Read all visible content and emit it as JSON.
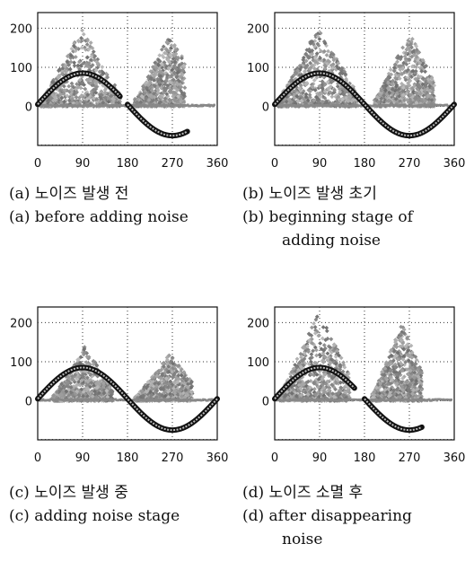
{
  "chart_data": [
    {
      "type": "scatter",
      "panel": "a",
      "caption_ko": "(a) 노이즈 발생 전",
      "caption_en": "(a) before adding noise",
      "caption_en_cont": "",
      "xlim": [
        0,
        360
      ],
      "ylim": [
        -100,
        240
      ],
      "xticks": [
        0,
        90,
        180,
        270,
        360
      ],
      "yticks": [
        0,
        100,
        200
      ],
      "grid": true,
      "series": [
        {
          "kind": "sine",
          "x_range": [
            0,
            165
          ],
          "segments": [
            [
              0,
              165
            ],
            [
              180,
              300
            ]
          ]
        },
        {
          "kind": "noise-clusters",
          "clusters": [
            {
              "x_range": [
                5,
                165
              ],
              "y_max": 200,
              "peak_x": 90
            },
            {
              "x_range": [
                195,
                295
              ],
              "y_max": 190,
              "peak_x": 265
            }
          ]
        }
      ]
    },
    {
      "type": "scatter",
      "panel": "b",
      "caption_ko": "(b) 노이즈 발생 초기",
      "caption_en": "(b) beginning stage of",
      "caption_en_cont": "adding noise",
      "xlim": [
        0,
        360
      ],
      "ylim": [
        -100,
        240
      ],
      "xticks": [
        0,
        90,
        180,
        270,
        360
      ],
      "yticks": [
        0,
        100,
        200
      ],
      "grid": true,
      "series": [
        {
          "kind": "sine",
          "segments": [
            [
              0,
              360
            ]
          ]
        },
        {
          "kind": "noise-clusters",
          "clusters": [
            {
              "x_range": [
                5,
                165
              ],
              "y_max": 210,
              "peak_x": 90
            },
            {
              "x_range": [
                200,
                320
              ],
              "y_max": 190,
              "peak_x": 270
            }
          ]
        }
      ]
    },
    {
      "type": "scatter",
      "panel": "c",
      "caption_ko": "(c) 노이즈 발생 중",
      "caption_en": "(c) adding noise stage",
      "caption_en_cont": "",
      "xlim": [
        0,
        360
      ],
      "ylim": [
        -100,
        240
      ],
      "xticks": [
        0,
        90,
        180,
        270,
        360
      ],
      "yticks": [
        0,
        100,
        200
      ],
      "grid": true,
      "series": [
        {
          "kind": "sine",
          "segments": [
            [
              0,
              360
            ]
          ]
        },
        {
          "kind": "noise-clusters",
          "clusters": [
            {
              "x_range": [
                30,
                150
              ],
              "y_max": 140,
              "peak_x": 95
            },
            {
              "x_range": [
                195,
                310
              ],
              "y_max": 120,
              "peak_x": 265
            }
          ]
        }
      ]
    },
    {
      "type": "scatter",
      "panel": "d",
      "caption_ko": "(d) 노이즈 소멸 후",
      "caption_en": "(d) after disappearing",
      "caption_en_cont": "noise",
      "xlim": [
        0,
        360
      ],
      "ylim": [
        -100,
        240
      ],
      "xticks": [
        0,
        90,
        180,
        270,
        360
      ],
      "yticks": [
        0,
        100,
        200
      ],
      "grid": true,
      "series": [
        {
          "kind": "sine",
          "segments": [
            [
              0,
              160
            ],
            [
              180,
              295
            ]
          ]
        },
        {
          "kind": "noise-clusters",
          "clusters": [
            {
              "x_range": [
                10,
                150
              ],
              "y_max": 230,
              "peak_x": 90
            },
            {
              "x_range": [
                195,
                295
              ],
              "y_max": 200,
              "peak_x": 255
            }
          ]
        }
      ]
    }
  ]
}
